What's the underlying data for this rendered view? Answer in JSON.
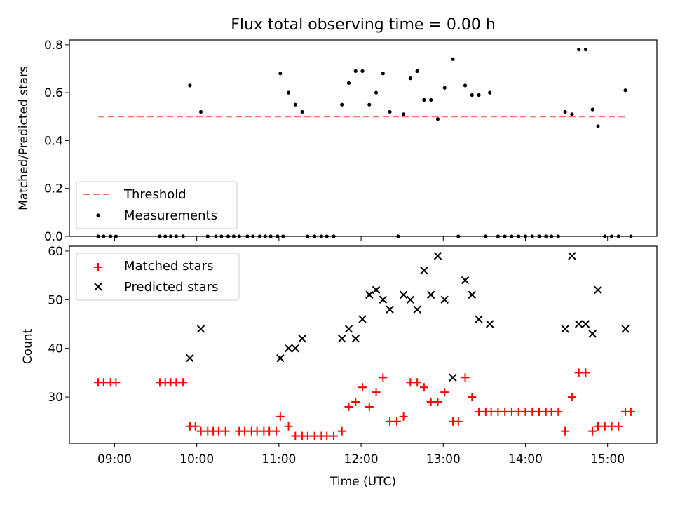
{
  "chart_data": [
    {
      "type": "scatter",
      "title": "Flux total observing time = 0.00 h",
      "xlabel": "",
      "ylabel": "Matched/Predicted stars",
      "ylim": [
        0,
        0.82
      ],
      "yticks": [
        "0.0",
        "0.2",
        "0.4",
        "0.6",
        "0.8"
      ],
      "grid": false,
      "legend_position": "lower-left",
      "threshold": {
        "name": "Threshold",
        "value": 0.5,
        "x_start": "08:48",
        "x_end": "15:15",
        "color": "#ff7070"
      },
      "series": [
        {
          "name": "Measurements",
          "color": "#000000",
          "points": [
            [
              "08:48",
              0
            ],
            [
              "08:52",
              0
            ],
            [
              "08:57",
              0
            ],
            [
              "09:01",
              0
            ],
            [
              "09:33",
              0
            ],
            [
              "09:37",
              0
            ],
            [
              "09:41",
              0
            ],
            [
              "09:45",
              0
            ],
            [
              "09:50",
              0
            ],
            [
              "09:55",
              0.63
            ],
            [
              "10:03",
              0.52
            ],
            [
              "10:08",
              0
            ],
            [
              "10:14",
              0
            ],
            [
              "10:18",
              0
            ],
            [
              "10:23",
              0
            ],
            [
              "10:27",
              0
            ],
            [
              "10:31",
              0
            ],
            [
              "10:37",
              0
            ],
            [
              "10:41",
              0
            ],
            [
              "10:46",
              0
            ],
            [
              "10:50",
              0
            ],
            [
              "10:54",
              0
            ],
            [
              "10:59",
              0
            ],
            [
              "11:03",
              0
            ],
            [
              "11:01",
              0.68
            ],
            [
              "11:07",
              0.6
            ],
            [
              "11:12",
              0.55
            ],
            [
              "11:17",
              0.52
            ],
            [
              "11:21",
              0
            ],
            [
              "11:26",
              0
            ],
            [
              "11:31",
              0
            ],
            [
              "11:35",
              0
            ],
            [
              "11:40",
              0
            ],
            [
              "11:46",
              0.55
            ],
            [
              "11:51",
              0.64
            ],
            [
              "11:56",
              0.69
            ],
            [
              "12:01",
              0.69
            ],
            [
              "12:06",
              0.55
            ],
            [
              "12:11",
              0.6
            ],
            [
              "12:16",
              0.68
            ],
            [
              "12:21",
              0.52
            ],
            [
              "12:27",
              0
            ],
            [
              "12:31",
              0.51
            ],
            [
              "12:36",
              0.66
            ],
            [
              "12:41",
              0.69
            ],
            [
              "12:46",
              0.57
            ],
            [
              "12:51",
              0.57
            ],
            [
              "12:56",
              0.49
            ],
            [
              "13:01",
              0.62
            ],
            [
              "13:07",
              0.74
            ],
            [
              "13:11",
              0
            ],
            [
              "13:16",
              0.63
            ],
            [
              "13:21",
              0.59
            ],
            [
              "13:26",
              0.59
            ],
            [
              "13:31",
              0
            ],
            [
              "13:34",
              0.6
            ],
            [
              "13:40",
              0
            ],
            [
              "13:45",
              0
            ],
            [
              "13:50",
              0
            ],
            [
              "13:55",
              0
            ],
            [
              "14:00",
              0
            ],
            [
              "14:05",
              0
            ],
            [
              "14:10",
              0
            ],
            [
              "14:15",
              0
            ],
            [
              "14:19",
              0
            ],
            [
              "14:24",
              0
            ],
            [
              "14:29",
              0.52
            ],
            [
              "14:34",
              0.51
            ],
            [
              "14:39",
              0.78
            ],
            [
              "14:44",
              0.78
            ],
            [
              "14:49",
              0.53
            ],
            [
              "14:53",
              0.46
            ],
            [
              "14:58",
              0
            ],
            [
              "15:03",
              0
            ],
            [
              "15:08",
              0
            ],
            [
              "15:13",
              0.61
            ],
            [
              "15:17",
              0
            ]
          ]
        }
      ]
    },
    {
      "type": "scatter",
      "title": "",
      "xlabel": "Time (UTC)",
      "ylabel": "Count",
      "ylim": [
        20.5,
        61
      ],
      "yticks": [
        "30",
        "40",
        "50",
        "60"
      ],
      "xticks": [
        "09:00",
        "10:00",
        "11:00",
        "12:00",
        "13:00",
        "14:00",
        "15:00"
      ],
      "grid": false,
      "legend_position": "top-left",
      "series": [
        {
          "name": "Matched stars",
          "color": "#ff0000",
          "marker": "plus",
          "points": [
            [
              "08:48",
              33
            ],
            [
              "08:52",
              33
            ],
            [
              "08:57",
              33
            ],
            [
              "09:01",
              33
            ],
            [
              "09:33",
              33
            ],
            [
              "09:37",
              33
            ],
            [
              "09:41",
              33
            ],
            [
              "09:45",
              33
            ],
            [
              "09:50",
              33
            ],
            [
              "09:55",
              24
            ],
            [
              "09:59",
              24
            ],
            [
              "10:03",
              23
            ],
            [
              "10:08",
              23
            ],
            [
              "10:12",
              23
            ],
            [
              "10:16",
              23
            ],
            [
              "10:21",
              23
            ],
            [
              "10:31",
              23
            ],
            [
              "10:35",
              23
            ],
            [
              "10:40",
              23
            ],
            [
              "10:44",
              23
            ],
            [
              "10:49",
              23
            ],
            [
              "10:53",
              23
            ],
            [
              "10:58",
              23
            ],
            [
              "11:01",
              26
            ],
            [
              "11:07",
              24
            ],
            [
              "11:12",
              22
            ],
            [
              "11:17",
              22
            ],
            [
              "11:21",
              22
            ],
            [
              "11:26",
              22
            ],
            [
              "11:31",
              22
            ],
            [
              "11:35",
              22
            ],
            [
              "11:40",
              22
            ],
            [
              "11:46",
              23
            ],
            [
              "11:51",
              28
            ],
            [
              "11:56",
              29
            ],
            [
              "12:01",
              32
            ],
            [
              "12:06",
              28
            ],
            [
              "12:11",
              31
            ],
            [
              "12:16",
              34
            ],
            [
              "12:21",
              25
            ],
            [
              "12:26",
              25
            ],
            [
              "12:31",
              26
            ],
            [
              "12:36",
              33
            ],
            [
              "12:41",
              33
            ],
            [
              "12:46",
              32
            ],
            [
              "12:51",
              29
            ],
            [
              "12:56",
              29
            ],
            [
              "13:01",
              31
            ],
            [
              "13:07",
              25
            ],
            [
              "13:11",
              25
            ],
            [
              "13:16",
              34
            ],
            [
              "13:21",
              30
            ],
            [
              "13:26",
              27
            ],
            [
              "13:31",
              27
            ],
            [
              "13:35",
              27
            ],
            [
              "13:40",
              27
            ],
            [
              "13:45",
              27
            ],
            [
              "13:50",
              27
            ],
            [
              "13:55",
              27
            ],
            [
              "14:00",
              27
            ],
            [
              "14:05",
              27
            ],
            [
              "14:10",
              27
            ],
            [
              "14:15",
              27
            ],
            [
              "14:19",
              27
            ],
            [
              "14:24",
              27
            ],
            [
              "14:29",
              23
            ],
            [
              "14:34",
              30
            ],
            [
              "14:39",
              35
            ],
            [
              "14:44",
              35
            ],
            [
              "14:49",
              23
            ],
            [
              "14:53",
              24
            ],
            [
              "14:58",
              24
            ],
            [
              "15:03",
              24
            ],
            [
              "15:08",
              24
            ],
            [
              "15:13",
              27
            ],
            [
              "15:17",
              27
            ]
          ]
        },
        {
          "name": "Predicted stars",
          "color": "#000000",
          "marker": "x",
          "points": [
            [
              "09:55",
              38
            ],
            [
              "10:03",
              44
            ],
            [
              "11:01",
              38
            ],
            [
              "11:07",
              40
            ],
            [
              "11:12",
              40
            ],
            [
              "11:17",
              42
            ],
            [
              "11:46",
              42
            ],
            [
              "11:51",
              44
            ],
            [
              "11:56",
              42
            ],
            [
              "12:01",
              46
            ],
            [
              "12:06",
              51
            ],
            [
              "12:11",
              52
            ],
            [
              "12:16",
              50
            ],
            [
              "12:21",
              48
            ],
            [
              "12:31",
              51
            ],
            [
              "12:36",
              50
            ],
            [
              "12:41",
              48
            ],
            [
              "12:46",
              56
            ],
            [
              "12:51",
              51
            ],
            [
              "12:56",
              59
            ],
            [
              "13:01",
              50
            ],
            [
              "13:07",
              34
            ],
            [
              "13:16",
              54
            ],
            [
              "13:21",
              51
            ],
            [
              "13:26",
              46
            ],
            [
              "13:34",
              45
            ],
            [
              "14:29",
              44
            ],
            [
              "14:34",
              59
            ],
            [
              "14:39",
              45
            ],
            [
              "14:44",
              45
            ],
            [
              "14:49",
              43
            ],
            [
              "14:53",
              52
            ],
            [
              "15:13",
              44
            ]
          ]
        }
      ]
    }
  ]
}
